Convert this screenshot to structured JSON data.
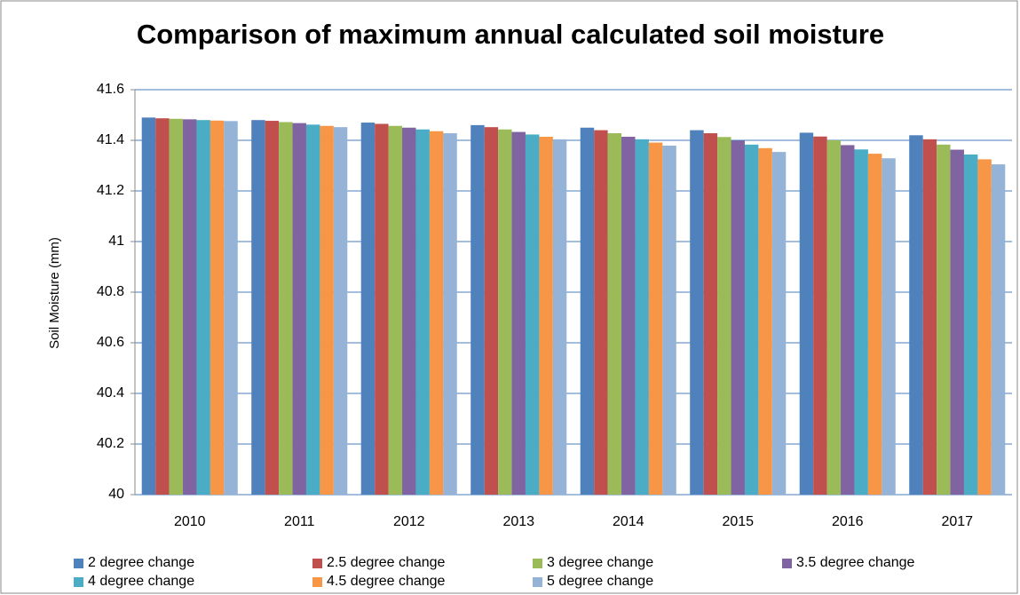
{
  "chart_data": {
    "type": "bar",
    "title": "Comparison of maximum annual calculated soil moisture",
    "y_label": "Soil Moisture (mm)",
    "categories": [
      "2010",
      "2011",
      "2012",
      "2013",
      "2014",
      "2015",
      "2016",
      "2017"
    ],
    "series": [
      {
        "name": "2 degree change",
        "color": "#4f81bd",
        "values": [
          41.49,
          41.48,
          41.47,
          41.46,
          41.45,
          41.44,
          41.43,
          41.42
        ]
      },
      {
        "name": "2.5 degree change",
        "color": "#c0504d",
        "values": [
          41.487,
          41.477,
          41.465,
          41.452,
          41.44,
          41.428,
          41.415,
          41.404
        ]
      },
      {
        "name": "3 degree change",
        "color": "#9bbb59",
        "values": [
          41.485,
          41.472,
          41.457,
          41.443,
          41.428,
          41.413,
          41.4,
          41.383
        ]
      },
      {
        "name": "3.5 degree change",
        "color": "#8064a2",
        "values": [
          41.483,
          41.468,
          41.45,
          41.433,
          41.414,
          41.399,
          41.381,
          41.363
        ]
      },
      {
        "name": "4 degree change",
        "color": "#4bacc6",
        "values": [
          41.48,
          41.462,
          41.443,
          41.423,
          41.404,
          41.383,
          41.364,
          41.344
        ]
      },
      {
        "name": "4.5 degree change",
        "color": "#f79646",
        "values": [
          41.478,
          41.457,
          41.436,
          41.414,
          41.391,
          41.369,
          41.347,
          41.325
        ]
      },
      {
        "name": "5 degree change",
        "color": "#95b3d7",
        "values": [
          41.476,
          41.452,
          41.428,
          41.404,
          41.379,
          41.354,
          41.329,
          41.305
        ]
      }
    ],
    "ylim": [
      40,
      41.6
    ],
    "yticks": [
      40,
      40.2,
      40.4,
      40.6,
      40.8,
      41,
      41.2,
      41.4,
      41.6
    ],
    "grid": true,
    "legend": "bottom"
  }
}
